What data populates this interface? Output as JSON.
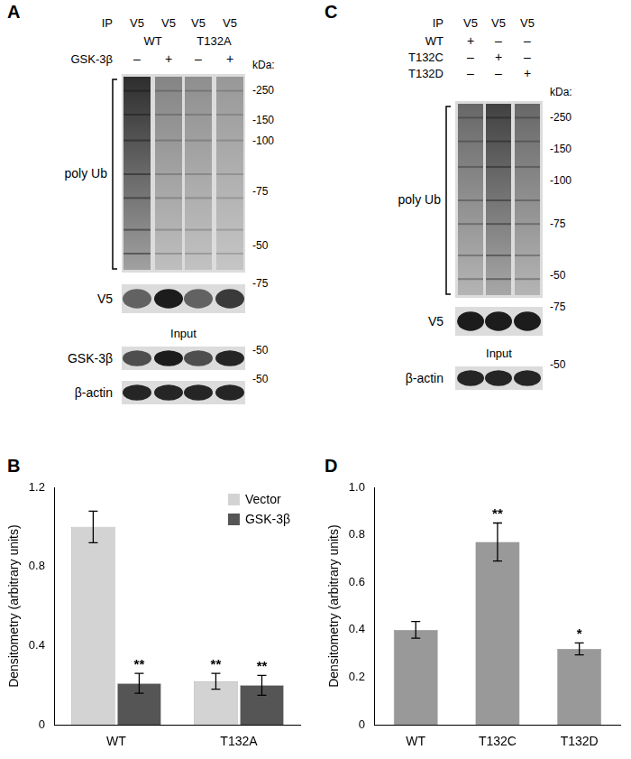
{
  "chart_data": [
    {
      "panel": "B",
      "type": "bar",
      "categories": [
        "WT",
        "T132A"
      ],
      "y_label": "Densitometry (arbitrary units)",
      "ylim": [
        0,
        1.2
      ],
      "yticks": [
        0,
        0.4,
        0.8,
        1.2
      ],
      "grid": false,
      "legend": "top-right",
      "series": [
        {
          "name": "Vector",
          "color": "#d3d3d3",
          "values": [
            1.0,
            0.22
          ],
          "error": [
            0.08,
            0.04
          ],
          "significance": [
            null,
            "**"
          ]
        },
        {
          "name": "GSK-3β",
          "color": "#555555",
          "values": [
            0.21,
            0.2
          ],
          "error": [
            0.05,
            0.05
          ],
          "significance": [
            "**",
            "**"
          ]
        }
      ]
    },
    {
      "panel": "D",
      "type": "bar",
      "categories": [
        "WT",
        "T132C",
        "T132D"
      ],
      "y_label": "Densitometry (arbitrary units)",
      "ylim": [
        0,
        1.0
      ],
      "yticks": [
        0,
        0.2,
        0.4,
        0.6,
        0.8,
        {
          "value": 1.0,
          "label": "1.0"
        }
      ],
      "grid": false,
      "color": "#999999",
      "values": [
        0.4,
        0.77,
        0.32
      ],
      "error": [
        0.035,
        0.08,
        0.025
      ],
      "significance": [
        null,
        "**",
        "*"
      ]
    }
  ],
  "blots": [
    {
      "panel": "A",
      "ip_label": "IP",
      "lanes": [
        "V5",
        "V5",
        "V5",
        "V5"
      ],
      "groups": [
        {
          "label": "WT",
          "lanes": [
            0,
            1
          ]
        },
        {
          "label": "T132A",
          "lanes": [
            2,
            3
          ]
        }
      ],
      "treatments": [
        {
          "label": "GSK-3β",
          "signs": [
            "–",
            "+",
            "–",
            "+"
          ]
        }
      ],
      "kda_label": "kDa:",
      "rows": [
        {
          "label": "poly Ub",
          "bracket": true,
          "intensity": [
            0.9,
            0.45,
            0.4,
            0.35
          ],
          "marker_labels": [
            "-250",
            "-150",
            "-100",
            "-75",
            "-50"
          ]
        },
        {
          "label": "V5",
          "intensity": [
            0.6,
            0.95,
            0.6,
            0.8
          ],
          "marker_labels": [
            "-75"
          ]
        }
      ],
      "input_label": "Input",
      "input_rows": [
        {
          "label": "GSK-3β",
          "intensity": [
            0.7,
            0.95,
            0.7,
            0.9
          ],
          "marker_labels": [
            "-50"
          ]
        },
        {
          "label": "β-actin",
          "intensity": [
            0.9,
            0.9,
            0.9,
            0.9
          ],
          "marker_labels": [
            "-50"
          ]
        }
      ]
    },
    {
      "panel": "C",
      "ip_label": "IP",
      "lanes": [
        "V5",
        "V5",
        "V5"
      ],
      "groups": [],
      "treatments": [
        {
          "label": "WT",
          "signs": [
            "+",
            "–",
            "–"
          ]
        },
        {
          "label": "T132C",
          "signs": [
            "–",
            "+",
            "–"
          ]
        },
        {
          "label": "T132D",
          "signs": [
            "–",
            "–",
            "+"
          ]
        }
      ],
      "kda_label": "kDa:",
      "rows": [
        {
          "label": "poly Ub",
          "bracket": true,
          "intensity": [
            0.6,
            0.8,
            0.6
          ],
          "marker_labels": [
            "-250",
            "-150",
            "-100",
            "-75",
            "-50"
          ]
        },
        {
          "label": "V5",
          "intensity": [
            0.95,
            0.95,
            0.95
          ],
          "marker_labels": [
            "-75"
          ]
        }
      ],
      "input_label": "Input",
      "input_rows": [
        {
          "label": "β-actin",
          "intensity": [
            0.9,
            0.9,
            0.9
          ],
          "marker_labels": [
            "-50"
          ]
        }
      ]
    }
  ]
}
